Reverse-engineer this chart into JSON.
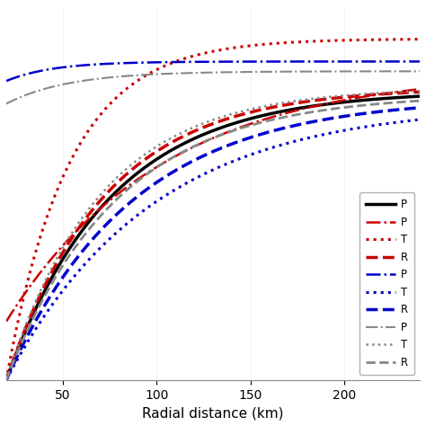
{
  "xlabel": "Radial distance (km)",
  "xlim": [
    20,
    240
  ],
  "ylim": [
    0.0,
    1.15
  ],
  "x_ticks": [
    50,
    100,
    150,
    200
  ],
  "legend_labels": [
    "P",
    "P",
    "T",
    "R",
    "P",
    "T",
    "R",
    "P",
    "T",
    "R"
  ],
  "colors": [
    "#000000",
    "#cc0000",
    "#cc0000",
    "#cc0000",
    "#0000cc",
    "#0000cc",
    "#0000cc",
    "#888888",
    "#888888",
    "#888888"
  ],
  "styles": [
    "solid",
    "dashdot",
    "dotted",
    "dashed",
    "dashdot",
    "dotted",
    "dashed",
    "dashdot",
    "dotted",
    "dashed"
  ],
  "lwidths": [
    2.5,
    1.8,
    2.2,
    2.5,
    1.8,
    2.2,
    2.5,
    1.5,
    1.8,
    2.0
  ]
}
